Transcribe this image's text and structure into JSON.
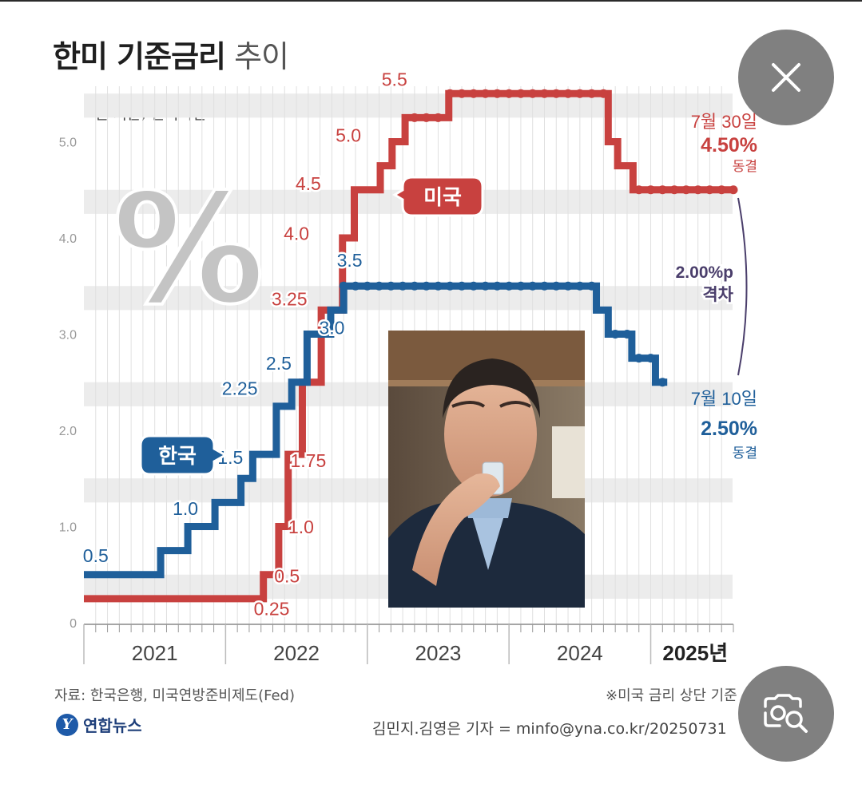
{
  "title": {
    "main": "한미 기준금리",
    "suffix": "추이"
  },
  "subtitle": "연 기준, 현지시간",
  "percent_symbol": "%",
  "chart_data": {
    "type": "line",
    "ylim": [
      0,
      5.5
    ],
    "yticks": [
      "0",
      "1.0",
      "2.0",
      "3.0",
      "4.0",
      "5.0"
    ],
    "years": [
      "2021",
      "2022",
      "2023",
      "2024",
      "2025년"
    ],
    "grid": true,
    "series": [
      {
        "name": "미국",
        "color": "#c8413f",
        "steps": [
          {
            "t": 0,
            "v": 0.25
          },
          {
            "t": 15.2,
            "v": 0.5
          },
          {
            "t": 16.5,
            "v": 1.0
          },
          {
            "t": 17.3,
            "v": 1.75
          },
          {
            "t": 18.5,
            "v": 2.5
          },
          {
            "t": 20.1,
            "v": 3.25
          },
          {
            "t": 21.9,
            "v": 4.0
          },
          {
            "t": 22.9,
            "v": 4.5
          },
          {
            "t": 25.1,
            "v": 4.75
          },
          {
            "t": 26.1,
            "v": 5.0
          },
          {
            "t": 27.2,
            "v": 5.25
          },
          {
            "t": 30.9,
            "v": 5.5
          },
          {
            "t": 44.4,
            "v": 5.0
          },
          {
            "t": 45.2,
            "v": 4.75
          },
          {
            "t": 46.5,
            "v": 4.5
          },
          {
            "t": 55.0,
            "v": 4.5
          }
        ],
        "labels": [
          {
            "text": "0.25",
            "t": 15.9,
            "v": 0.08
          },
          {
            "text": "0.5",
            "t": 17.2,
            "v": 0.42
          },
          {
            "text": "1.0",
            "t": 18.4,
            "v": 0.93
          },
          {
            "text": "1.75",
            "t": 19.0,
            "v": 1.62
          },
          {
            "text": "3.25",
            "t": 17.4,
            "v": 3.3
          },
          {
            "text": "4.0",
            "t": 18.0,
            "v": 3.98
          },
          {
            "text": "4.5",
            "t": 19.0,
            "v": 4.5
          },
          {
            "text": "5.0",
            "t": 22.4,
            "v": 5.0
          },
          {
            "text": "5.5",
            "t": 26.3,
            "v": 5.58
          }
        ],
        "tag": "미국",
        "end_date": "7월 30일",
        "end_value": "4.50%",
        "end_status": "동결"
      },
      {
        "name": "한국",
        "color": "#1f5f9a",
        "steps": [
          {
            "t": 0,
            "v": 0.5
          },
          {
            "t": 6.5,
            "v": 0.75
          },
          {
            "t": 8.8,
            "v": 1.0
          },
          {
            "t": 11.1,
            "v": 1.25
          },
          {
            "t": 13.3,
            "v": 1.5
          },
          {
            "t": 14.3,
            "v": 1.75
          },
          {
            "t": 16.3,
            "v": 2.25
          },
          {
            "t": 17.6,
            "v": 2.5
          },
          {
            "t": 18.9,
            "v": 3.0
          },
          {
            "t": 20.9,
            "v": 3.25
          },
          {
            "t": 22.0,
            "v": 3.5
          },
          {
            "t": 43.4,
            "v": 3.25
          },
          {
            "t": 44.4,
            "v": 3.0
          },
          {
            "t": 46.4,
            "v": 2.75
          },
          {
            "t": 48.4,
            "v": 2.5
          },
          {
            "t": 49.4,
            "v": 2.5
          }
        ],
        "labels": [
          {
            "text": "0.5",
            "t": 1.0,
            "v": 0.63
          },
          {
            "text": "1.0",
            "t": 8.6,
            "v": 1.12
          },
          {
            "text": "1.5",
            "t": 12.4,
            "v": 1.65
          },
          {
            "text": "2.25",
            "t": 13.2,
            "v": 2.37
          },
          {
            "text": "2.5",
            "t": 16.5,
            "v": 2.63
          },
          {
            "text": "3.0",
            "t": 21.0,
            "v": 3.0
          },
          {
            "text": "3.5",
            "t": 22.5,
            "v": 3.7
          }
        ],
        "tag": "한국",
        "end_date": "7월 10일",
        "end_value": "2.50%",
        "end_status": "동결"
      }
    ],
    "gap_annotation": {
      "value": "2.00%p",
      "label": "격차"
    }
  },
  "footer": {
    "source": "자료: 한국은행, 미국연방준비제도(Fed)",
    "note": "※미국 금리 상단 기준",
    "credit": "김민지.김영은 기자 = minfo@yna.co.kr/20250731",
    "logo_mark": "Y",
    "logo_text": "연합뉴스"
  },
  "overlay": {
    "close_icon": "close-icon",
    "lens_icon": "image-search-icon"
  }
}
